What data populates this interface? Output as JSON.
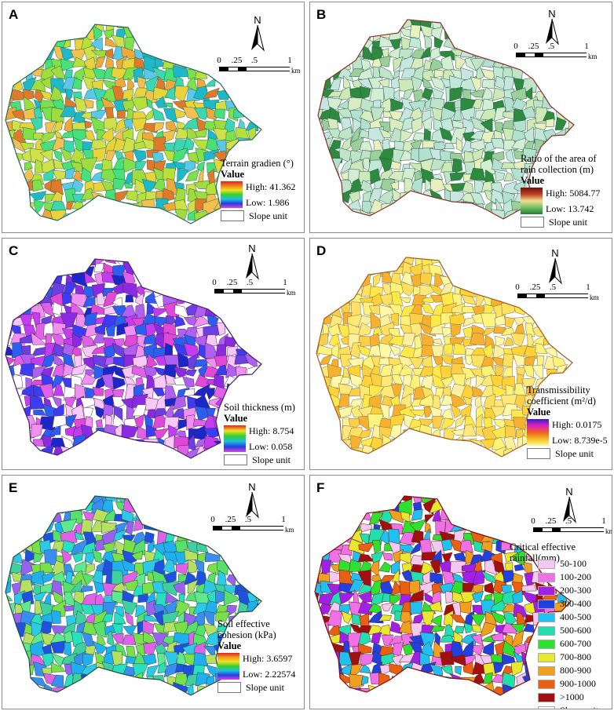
{
  "panels": {
    "a": {
      "letter": "A",
      "title": "Terrain gradien (°)",
      "value_label": "Value",
      "high": "High: 41.362",
      "low": "Low: 1.986",
      "slope_unit": "Slope unit",
      "palette": [
        "#1fb8c8",
        "#3cd6b0",
        "#7ee04a",
        "#b8e03a",
        "#e8d43a",
        "#f0a83a",
        "#e07a2a",
        "#cfe04a",
        "#48e078",
        "#5ac8e8",
        "#f4c050",
        "#a0dc40"
      ]
    },
    "b": {
      "letter": "B",
      "title": "Ratio of the area of rain collection (m)",
      "value_label": "Value",
      "high": "High: 5084.77",
      "low": "Low: 13.742",
      "slope_unit": "Slope unit",
      "palette": [
        "#bfe4c8",
        "#d8ecc0",
        "#c4e8d8",
        "#e8f0c0",
        "#b4e0d0",
        "#cfe8b8",
        "#d4eed4",
        "#2e8a3e",
        "#9ccf9a",
        "#c8e6e0"
      ]
    },
    "c": {
      "letter": "C",
      "title": "Soil thickness (m)",
      "value_label": "Value",
      "high": "High: 8.754",
      "low": "Low: 0.058",
      "slope_unit": "Slope unit",
      "palette": [
        "#c43cf0",
        "#e060e8",
        "#8a2be2",
        "#3c3cf0",
        "#1a28c8",
        "#f090f0",
        "#f8c8f8",
        "#ffffff",
        "#6a40e0",
        "#2a60f0",
        "#e048d8",
        "#b060f0"
      ]
    },
    "d": {
      "letter": "D",
      "title": "Transmissibility coefficient (m²/d)",
      "value_label": "Value",
      "high": "High: 0.0175",
      "low": "Low: 8.739e-5",
      "slope_unit": "Slope unit",
      "palette": [
        "#fff27a",
        "#ffe94a",
        "#fff8a8",
        "#ffd23a",
        "#ffe060",
        "#fbd048",
        "#fff0a0",
        "#f8b030",
        "#fff480",
        "#ffe87a"
      ]
    },
    "e": {
      "letter": "E",
      "title": "Soil effective cohesion (kPa)",
      "value_label": "Value",
      "high": "High: 3.6597",
      "low": "Low: 2.22574",
      "slope_unit": "Slope unit",
      "palette": [
        "#2ec8e8",
        "#28e0c0",
        "#58e06a",
        "#7ae04a",
        "#3a8ef0",
        "#2050e0",
        "#9a60f0",
        "#e060e8",
        "#b8e060",
        "#40d0a0",
        "#20b0f0",
        "#60e890"
      ]
    },
    "f": {
      "letter": "F",
      "title": "Critical effective rainfall(mm)",
      "slope_unit": "Slope unit",
      "classes": [
        {
          "label": "50-100",
          "color": "#f4c8f0"
        },
        {
          "label": "100-200",
          "color": "#f070e8"
        },
        {
          "label": "200-300",
          "color": "#a020e8"
        },
        {
          "label": "300-400",
          "color": "#2040e0"
        },
        {
          "label": "400-500",
          "color": "#20c0f0"
        },
        {
          "label": "500-600",
          "color": "#20e0b0"
        },
        {
          "label": "600-700",
          "color": "#30e030"
        },
        {
          "label": "700-800",
          "color": "#e8e830"
        },
        {
          "label": "800-900",
          "color": "#f0a020"
        },
        {
          "label": "900-1000",
          "color": "#e86010"
        },
        {
          "label": ">1000",
          "color": "#a01010"
        }
      ]
    }
  },
  "north_label": "N",
  "scale": {
    "ticks": [
      "0",
      ".25",
      ".5",
      "1"
    ],
    "unit": "km"
  }
}
